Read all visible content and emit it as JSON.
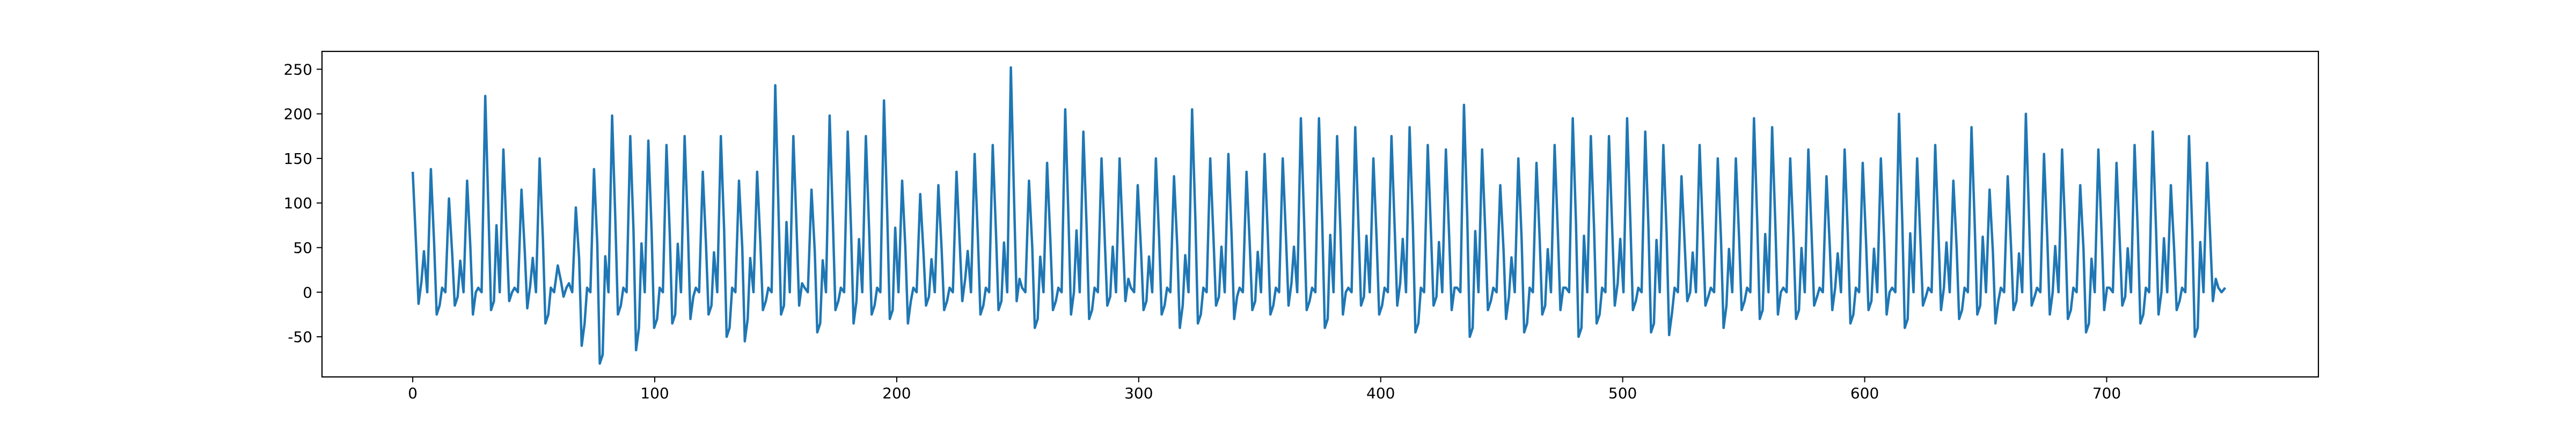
{
  "chart_data": {
    "type": "line",
    "title": "",
    "xlabel": "",
    "ylabel": "",
    "xlim": [
      -37.5,
      787.5
    ],
    "ylim": [
      -95,
      270
    ],
    "xticks": [
      0,
      100,
      200,
      300,
      400,
      500,
      600,
      700
    ],
    "yticks": [
      -50,
      0,
      50,
      100,
      150,
      200,
      250
    ],
    "grid": false,
    "legend": "none",
    "x_start": 0,
    "x_end": 749,
    "series": [
      {
        "color": "#1f77b4",
        "peaks": [
          135,
          138,
          105,
          125,
          220,
          160,
          115,
          150,
          30,
          95,
          138,
          198,
          175,
          170,
          165,
          175,
          135,
          175,
          125,
          135,
          232,
          175,
          115,
          198,
          180,
          175,
          215,
          125,
          110,
          120,
          135,
          155,
          165,
          252,
          125,
          145,
          205,
          180,
          150,
          150,
          120,
          150,
          130,
          205,
          150,
          155,
          135,
          155,
          150,
          195,
          195,
          175,
          185,
          150,
          175,
          185,
          165,
          160,
          210,
          160,
          120,
          150,
          145,
          165,
          195,
          175,
          175,
          195,
          180,
          165,
          130,
          165,
          150,
          150,
          195,
          185,
          150,
          160,
          130,
          160,
          145,
          150,
          200,
          150,
          165,
          125,
          185,
          115,
          130,
          200,
          155,
          160,
          120,
          160,
          145,
          165,
          180,
          120,
          175,
          145
        ],
        "troughs": [
          -13,
          -25,
          -15,
          -25,
          -20,
          -10,
          -18,
          -35,
          -5,
          -60,
          -80,
          -25,
          -65,
          -40,
          -35,
          -30,
          -25,
          -50,
          -55,
          -20,
          -25,
          -15,
          -45,
          -20,
          -35,
          -25,
          -30,
          -35,
          -15,
          -20,
          -10,
          -25,
          -20,
          -10,
          -40,
          -20,
          -25,
          -30,
          -15,
          -10,
          -20,
          -25,
          -40,
          -35,
          -15,
          -30,
          -20,
          -25,
          -15,
          -20,
          -40,
          -25,
          -15,
          -25,
          -15,
          -45,
          -15,
          -20,
          -50,
          -20,
          -30,
          -45,
          -25,
          -20,
          -50,
          -35,
          -15,
          -20,
          -45,
          -48,
          -10,
          -15,
          -40,
          -20,
          -30,
          -25,
          -30,
          -15,
          -20,
          -35,
          -20,
          -25,
          -40,
          -15,
          -20,
          -30,
          -25,
          -35,
          -20,
          -15,
          -25,
          -30,
          -45,
          -20,
          -15,
          -35,
          -25,
          -20,
          -50,
          -10
        ]
      }
    ]
  }
}
